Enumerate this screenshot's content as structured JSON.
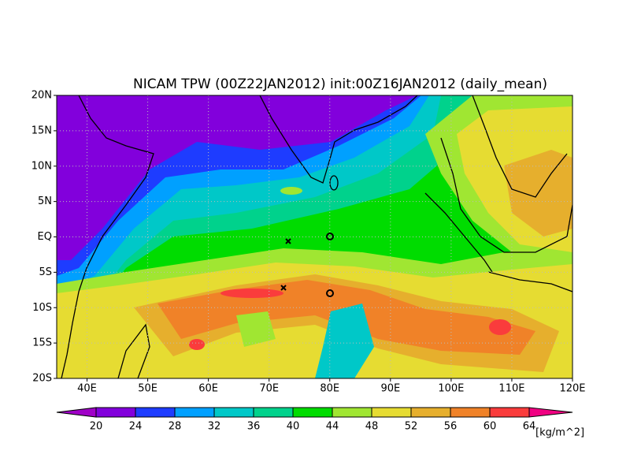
{
  "chart_data": {
    "type": "map",
    "title": "NICAM TPW (00Z22JAN2012) init:00Z16JAN2012 (daily_mean)",
    "xlim": [
      35,
      120
    ],
    "ylim": [
      -20,
      20
    ],
    "xticks": [
      {
        "value": 40,
        "label": "40E"
      },
      {
        "value": 50,
        "label": "50E"
      },
      {
        "value": 60,
        "label": "60E"
      },
      {
        "value": 70,
        "label": "70E"
      },
      {
        "value": 80,
        "label": "80E"
      },
      {
        "value": 90,
        "label": "90E"
      },
      {
        "value": 100,
        "label": "100E"
      },
      {
        "value": 110,
        "label": "110E"
      },
      {
        "value": 120,
        "label": "120E"
      }
    ],
    "yticks": [
      {
        "value": 20,
        "label": "20N"
      },
      {
        "value": 15,
        "label": "15N"
      },
      {
        "value": 10,
        "label": "10N"
      },
      {
        "value": 5,
        "label": "5N"
      },
      {
        "value": 0,
        "label": "EQ"
      },
      {
        "value": -5,
        "label": "5S"
      },
      {
        "value": -10,
        "label": "10S"
      },
      {
        "value": -15,
        "label": "15S"
      },
      {
        "value": -20,
        "label": "20S"
      }
    ],
    "grid": true,
    "colorbar": {
      "levels": [
        20,
        24,
        28,
        32,
        36,
        40,
        44,
        48,
        52,
        56,
        60,
        64
      ],
      "colors": [
        "#a000c8",
        "#8200dc",
        "#1e3cff",
        "#00a0ff",
        "#00c8c8",
        "#00d28c",
        "#00dc00",
        "#a0e632",
        "#e6dc32",
        "#e6af2d",
        "#f08228",
        "#fa3c3c",
        "#f00082"
      ],
      "unit": "[kg/m^2]"
    }
  }
}
